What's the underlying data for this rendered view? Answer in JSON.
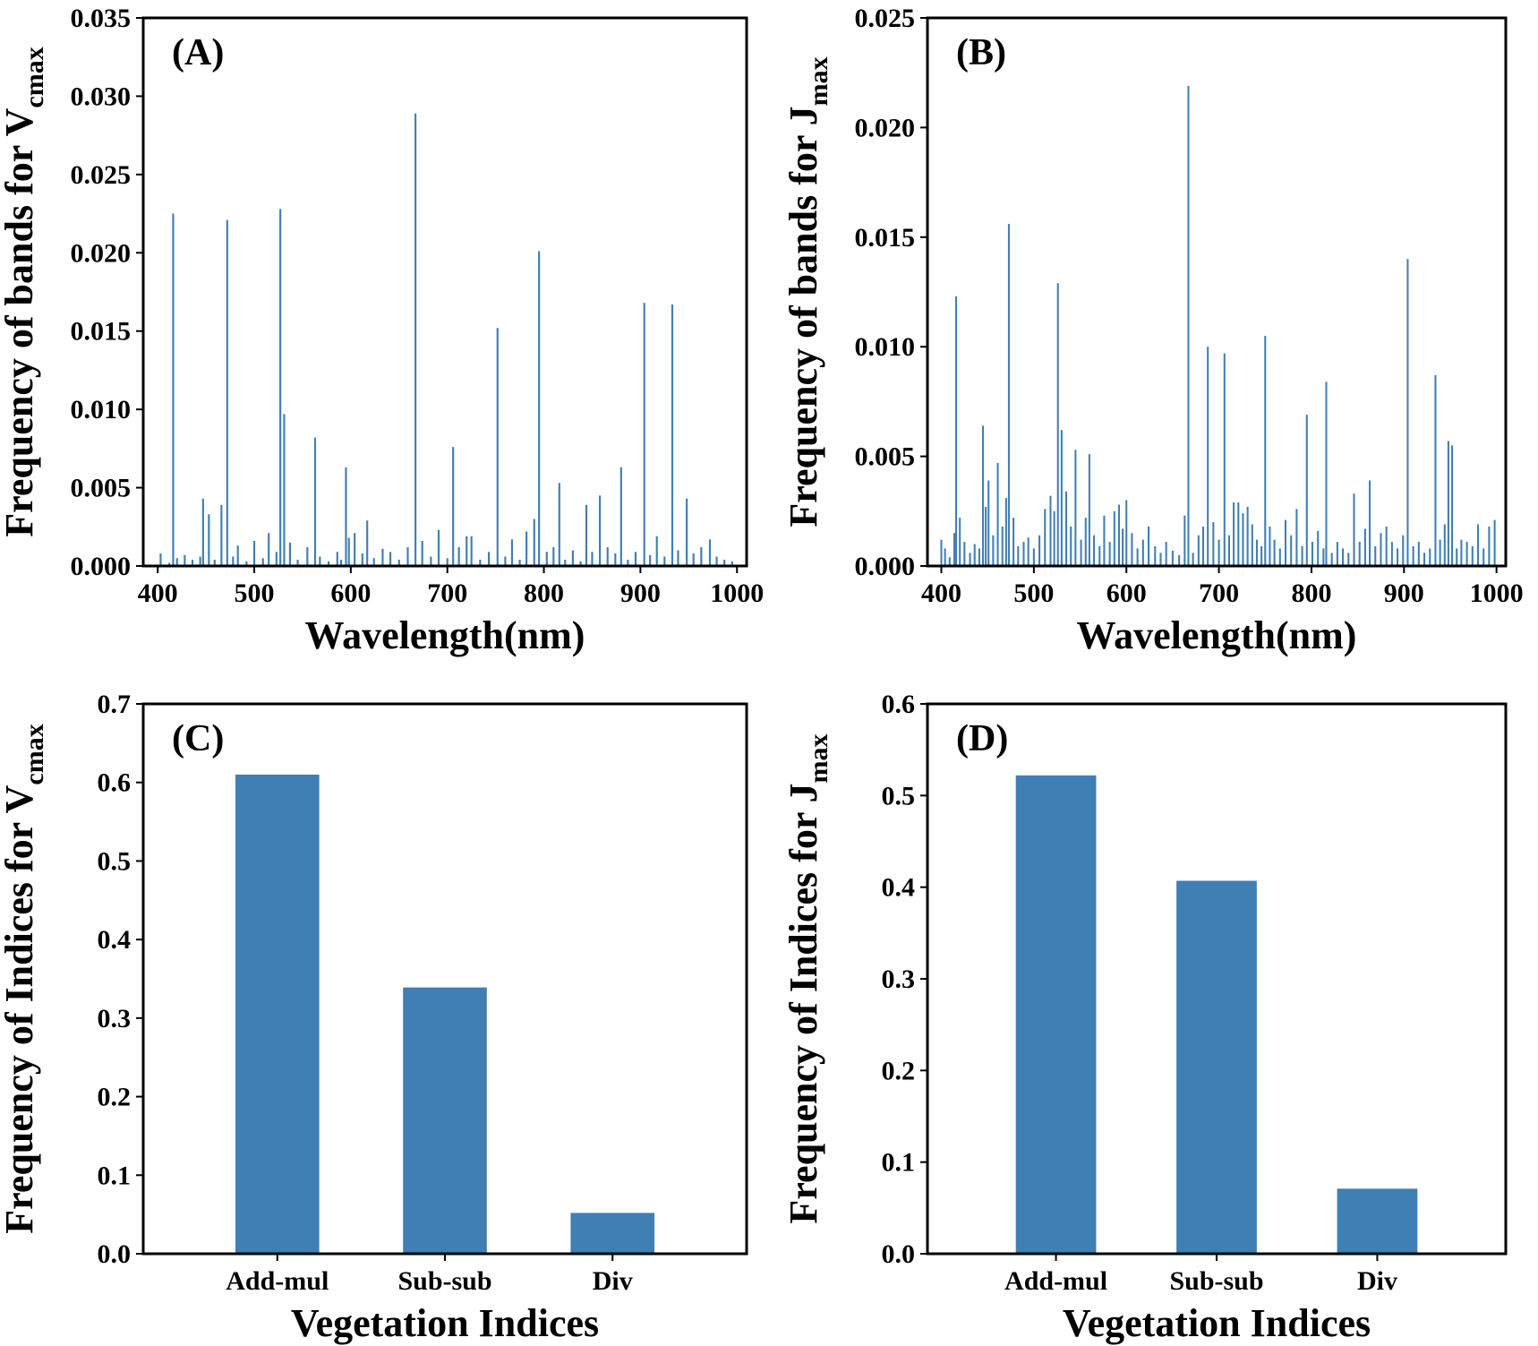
{
  "chart_data": [
    {
      "type": "bar",
      "panel_label": "(A)",
      "title": "",
      "xlabel": "Wavelength(nm)",
      "ylabel_prefix": "Frequency of bands for V",
      "ylabel_subscript": "cmax",
      "xlim": [
        385,
        1010
      ],
      "ylim": [
        0,
        0.035
      ],
      "xticks": [
        400,
        500,
        600,
        700,
        800,
        900,
        1000
      ],
      "yticks": [
        "0.000",
        "0.005",
        "0.010",
        "0.015",
        "0.020",
        "0.025",
        "0.030",
        "0.035"
      ],
      "bar_width": 2,
      "x": [
        403,
        412,
        416,
        420,
        428,
        436,
        444,
        447,
        453,
        459,
        466,
        472,
        478,
        483,
        492,
        500,
        509,
        515,
        523,
        527,
        531,
        537,
        545,
        555,
        563,
        568,
        577,
        586,
        590,
        595,
        598,
        604,
        612,
        617,
        624,
        633,
        641,
        650,
        659,
        667,
        674,
        683,
        691,
        700,
        706,
        712,
        720,
        725,
        734,
        743,
        752,
        760,
        767,
        775,
        782,
        790,
        795,
        803,
        810,
        816,
        822,
        830,
        838,
        844,
        850,
        858,
        866,
        874,
        880,
        887,
        895,
        904,
        910,
        917,
        925,
        933,
        939,
        948,
        955,
        963,
        972,
        979,
        987,
        995
      ],
      "values": [
        0.0008,
        0.0002,
        0.0225,
        0.0005,
        0.0007,
        0.0004,
        0.0006,
        0.0043,
        0.0033,
        0.0004,
        0.0039,
        0.0221,
        0.0006,
        0.0013,
        0.0003,
        0.0016,
        0.0005,
        0.0021,
        0.0009,
        0.0228,
        0.0097,
        0.0015,
        0.0004,
        0.0012,
        0.0082,
        0.0006,
        0.0003,
        0.0009,
        0.0004,
        0.0063,
        0.0018,
        0.0021,
        0.0008,
        0.0029,
        0.0005,
        0.0011,
        0.0009,
        0.0004,
        0.0012,
        0.0289,
        0.0016,
        0.0006,
        0.0023,
        0.0005,
        0.0076,
        0.0012,
        0.0019,
        0.0019,
        0.0004,
        0.0009,
        0.0152,
        0.0006,
        0.0017,
        0.0004,
        0.0022,
        0.003,
        0.0201,
        0.0009,
        0.0012,
        0.0053,
        0.0004,
        0.001,
        0.0003,
        0.0039,
        0.0009,
        0.0045,
        0.0012,
        0.0008,
        0.0063,
        0.0004,
        0.0009,
        0.0168,
        0.0007,
        0.0019,
        0.0006,
        0.0167,
        0.001,
        0.0043,
        0.0008,
        0.0012,
        0.0017,
        0.0006,
        0.0004,
        0.0003
      ]
    },
    {
      "type": "bar",
      "panel_label": "(B)",
      "title": "",
      "xlabel": "Wavelength(nm)",
      "ylabel_prefix": "Frequency of bands for J",
      "ylabel_subscript": "max",
      "xlim": [
        385,
        1010
      ],
      "ylim": [
        0,
        0.025
      ],
      "xticks": [
        400,
        500,
        600,
        700,
        800,
        900,
        1000
      ],
      "yticks": [
        "0.000",
        "0.005",
        "0.010",
        "0.015",
        "0.020",
        "0.025"
      ],
      "bar_width": 2,
      "x": [
        400,
        404,
        409,
        414,
        416,
        420,
        425,
        431,
        436,
        441,
        445,
        448,
        451,
        456,
        461,
        466,
        470,
        473,
        478,
        483,
        489,
        494,
        500,
        506,
        512,
        518,
        522,
        526,
        530,
        535,
        540,
        545,
        551,
        556,
        560,
        565,
        571,
        576,
        582,
        587,
        592,
        596,
        600,
        606,
        612,
        618,
        624,
        631,
        637,
        643,
        650,
        657,
        663,
        667,
        672,
        678,
        683,
        688,
        694,
        700,
        706,
        711,
        716,
        721,
        726,
        731,
        736,
        741,
        746,
        750,
        755,
        760,
        766,
        772,
        778,
        784,
        790,
        795,
        801,
        807,
        813,
        816,
        822,
        828,
        834,
        840,
        846,
        852,
        858,
        863,
        869,
        875,
        881,
        887,
        893,
        899,
        904,
        910,
        916,
        922,
        928,
        934,
        939,
        944,
        948,
        952,
        957,
        962,
        968,
        974,
        980,
        986,
        992,
        998
      ],
      "values": [
        0.0012,
        0.0008,
        0.0004,
        0.0015,
        0.0123,
        0.0022,
        0.0011,
        0.0006,
        0.001,
        0.0008,
        0.0064,
        0.0027,
        0.0039,
        0.0014,
        0.0047,
        0.0018,
        0.0031,
        0.0156,
        0.0022,
        0.0009,
        0.0011,
        0.0013,
        0.0008,
        0.0014,
        0.0026,
        0.0032,
        0.0025,
        0.0129,
        0.0062,
        0.0034,
        0.0018,
        0.0053,
        0.0012,
        0.0022,
        0.0051,
        0.0014,
        0.0009,
        0.0023,
        0.0011,
        0.0025,
        0.0028,
        0.0017,
        0.003,
        0.0015,
        0.0008,
        0.0012,
        0.0018,
        0.0009,
        0.0006,
        0.0011,
        0.0007,
        0.0005,
        0.0023,
        0.0219,
        0.0006,
        0.0014,
        0.0018,
        0.01,
        0.002,
        0.0012,
        0.0097,
        0.0014,
        0.0029,
        0.0029,
        0.0024,
        0.0027,
        0.0019,
        0.0012,
        0.0009,
        0.0105,
        0.0018,
        0.0012,
        0.0008,
        0.0021,
        0.0014,
        0.0026,
        0.0009,
        0.0069,
        0.0011,
        0.0016,
        0.0008,
        0.0084,
        0.0006,
        0.0011,
        0.0008,
        0.0006,
        0.0033,
        0.0011,
        0.0017,
        0.0039,
        0.0009,
        0.0015,
        0.0018,
        0.0011,
        0.0008,
        0.0014,
        0.014,
        0.0009,
        0.0011,
        0.0006,
        0.0008,
        0.0087,
        0.0012,
        0.0019,
        0.0057,
        0.0055,
        0.0008,
        0.0012,
        0.0011,
        0.0009,
        0.0019,
        0.0008,
        0.0018,
        0.0021
      ]
    },
    {
      "type": "bar",
      "panel_label": "(C)",
      "title": "",
      "xlabel": "Vegetation Indices",
      "ylabel_prefix": "Frequency of Indices for V",
      "ylabel_subscript": "cmax",
      "categories": [
        "Add-mul",
        "Sub-sub",
        "Div"
      ],
      "values": [
        0.61,
        0.339,
        0.052
      ],
      "ylim": [
        0,
        0.7
      ],
      "yticks": [
        "0.0",
        "0.1",
        "0.2",
        "0.3",
        "0.4",
        "0.5",
        "0.6",
        "0.7"
      ]
    },
    {
      "type": "bar",
      "panel_label": "(D)",
      "title": "",
      "xlabel": "Vegetation Indices",
      "ylabel_prefix": "Frequency of Indices for J",
      "ylabel_subscript": "max",
      "categories": [
        "Add-mul",
        "Sub-sub",
        "Div"
      ],
      "values": [
        0.522,
        0.407,
        0.071
      ],
      "ylim": [
        0,
        0.6
      ],
      "yticks": [
        "0.0",
        "0.1",
        "0.2",
        "0.3",
        "0.4",
        "0.5",
        "0.6"
      ]
    }
  ],
  "colors": {
    "bar": "#3f7fb4",
    "axis": "#000000"
  }
}
